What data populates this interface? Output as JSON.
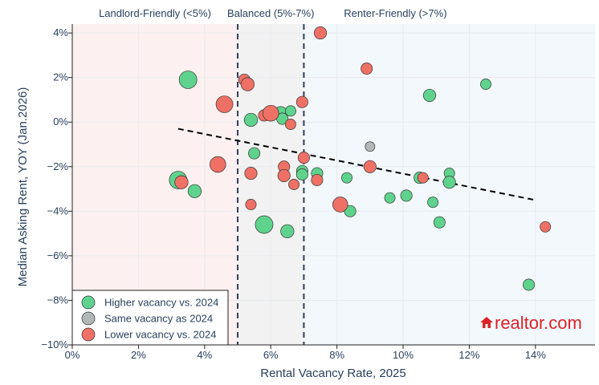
{
  "chart_data": {
    "type": "scatter",
    "xlabel": "Rental Vacancy Rate, 2025",
    "ylabel": "Median Asking Rent, YOY (Jan.2026)",
    "xlim": [
      0,
      15.8
    ],
    "ylim": [
      -10,
      4.4
    ],
    "x_ticks": [
      {
        "value": 0,
        "label": "0%"
      },
      {
        "value": 2,
        "label": "2%"
      },
      {
        "value": 4,
        "label": "4%"
      },
      {
        "value": 6,
        "label": "6%"
      },
      {
        "value": 8,
        "label": "8%"
      },
      {
        "value": 10,
        "label": "10%"
      },
      {
        "value": 12,
        "label": "12%"
      },
      {
        "value": 14,
        "label": "14%"
      }
    ],
    "y_ticks": [
      {
        "value": 4,
        "label": "4%"
      },
      {
        "value": 2,
        "label": "2%"
      },
      {
        "value": 0,
        "label": "0%"
      },
      {
        "value": -2,
        "label": "−2%"
      },
      {
        "value": -4,
        "label": "−4%"
      },
      {
        "value": -6,
        "label": "−6%"
      },
      {
        "value": -8,
        "label": "−8%"
      },
      {
        "value": -10,
        "label": "−10%"
      }
    ],
    "regions": [
      {
        "label": "Landlord-Friendly (<5%)",
        "x0": 0,
        "x1": 5,
        "color": "#fdf0f0"
      },
      {
        "label": "Balanced (5%-7%)",
        "x0": 5,
        "x1": 7,
        "color": "#f2f2f2"
      },
      {
        "label": "Renter-Friendly (>7%)",
        "x0": 7,
        "x1": 15.8,
        "color": "#f3f8fd"
      }
    ],
    "threshold_lines": [
      5,
      7
    ],
    "trendline": {
      "x": [
        3.2,
        14.0
      ],
      "y": [
        -0.3,
        -3.5
      ]
    },
    "series": [
      {
        "name": "Higher vacancy vs. 2024",
        "color": "#5fd38d",
        "points": [
          {
            "x": 3.5,
            "y": 1.9,
            "size": 2
          },
          {
            "x": 3.2,
            "y": -2.6,
            "size": 2
          },
          {
            "x": 3.7,
            "y": -3.1,
            "size": 1.5
          },
          {
            "x": 5.4,
            "y": 0.1,
            "size": 1.5
          },
          {
            "x": 5.5,
            "y": -1.4,
            "size": 1.3
          },
          {
            "x": 5.8,
            "y": -4.6,
            "size": 2
          },
          {
            "x": 6.3,
            "y": 0.4,
            "size": 1.5
          },
          {
            "x": 6.35,
            "y": 0.15,
            "size": 1.3
          },
          {
            "x": 6.6,
            "y": 0.5,
            "size": 1.2
          },
          {
            "x": 6.5,
            "y": -4.9,
            "size": 1.5
          },
          {
            "x": 6.95,
            "y": -2.2,
            "size": 1.3
          },
          {
            "x": 6.95,
            "y": -2.35,
            "size": 1.3
          },
          {
            "x": 7.4,
            "y": -2.3,
            "size": 1.3
          },
          {
            "x": 8.3,
            "y": -2.5,
            "size": 1.2
          },
          {
            "x": 8.4,
            "y": -4.0,
            "size": 1.3
          },
          {
            "x": 9.6,
            "y": -3.4,
            "size": 1.2
          },
          {
            "x": 10.1,
            "y": -3.3,
            "size": 1.3
          },
          {
            "x": 10.5,
            "y": -2.5,
            "size": 1.3
          },
          {
            "x": 10.8,
            "y": 1.2,
            "size": 1.4
          },
          {
            "x": 10.9,
            "y": -3.6,
            "size": 1.2
          },
          {
            "x": 11.1,
            "y": -4.5,
            "size": 1.3
          },
          {
            "x": 11.4,
            "y": -2.3,
            "size": 1.2
          },
          {
            "x": 11.4,
            "y": -2.7,
            "size": 1.4
          },
          {
            "x": 12.5,
            "y": 1.7,
            "size": 1.2
          },
          {
            "x": 13.8,
            "y": -7.3,
            "size": 1.3
          }
        ]
      },
      {
        "name": "Same vacancy as 2024",
        "color": "#b3b7b8",
        "points": [
          {
            "x": 9.0,
            "y": -1.1,
            "size": 1.1
          }
        ]
      },
      {
        "name": "Lower vacancy vs. 2024",
        "color": "#ef7166",
        "points": [
          {
            "x": 4.6,
            "y": 0.8,
            "size": 1.9
          },
          {
            "x": 4.4,
            "y": -1.9,
            "size": 1.8
          },
          {
            "x": 3.3,
            "y": -2.7,
            "size": 1.5
          },
          {
            "x": 5.2,
            "y": 1.9,
            "size": 1.3
          },
          {
            "x": 5.3,
            "y": 1.7,
            "size": 1.5
          },
          {
            "x": 5.4,
            "y": -2.3,
            "size": 1.4
          },
          {
            "x": 5.4,
            "y": -3.7,
            "size": 1.2
          },
          {
            "x": 5.8,
            "y": 0.3,
            "size": 1.3
          },
          {
            "x": 6.0,
            "y": 0.4,
            "size": 1.8
          },
          {
            "x": 6.4,
            "y": -2.0,
            "size": 1.3
          },
          {
            "x": 6.4,
            "y": -2.4,
            "size": 1.4
          },
          {
            "x": 6.6,
            "y": -0.1,
            "size": 1.2
          },
          {
            "x": 6.7,
            "y": -2.8,
            "size": 1.2
          },
          {
            "x": 6.95,
            "y": 0.9,
            "size": 1.3
          },
          {
            "x": 7.0,
            "y": -1.6,
            "size": 1.3
          },
          {
            "x": 7.4,
            "y": -2.6,
            "size": 1.3
          },
          {
            "x": 7.5,
            "y": 4.0,
            "size": 1.4
          },
          {
            "x": 8.1,
            "y": -3.7,
            "size": 1.7
          },
          {
            "x": 8.9,
            "y": 2.4,
            "size": 1.3
          },
          {
            "x": 9.0,
            "y": -2.0,
            "size": 1.4
          },
          {
            "x": 10.6,
            "y": -2.5,
            "size": 1.2
          },
          {
            "x": 14.3,
            "y": -4.7,
            "size": 1.2
          }
        ]
      }
    ]
  },
  "brand": {
    "text": "realtor.com",
    "color": "#d92228"
  }
}
